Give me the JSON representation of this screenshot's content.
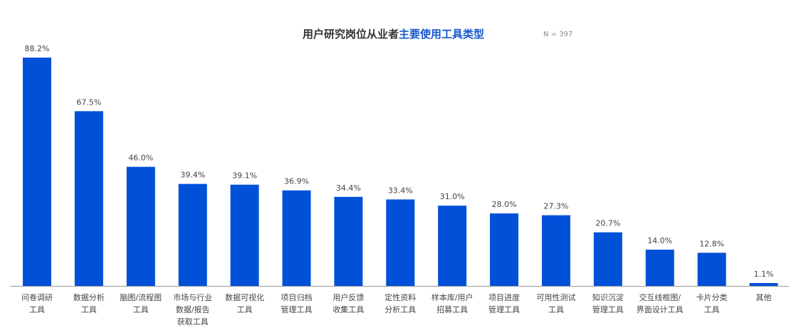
{
  "title": {
    "prefix": "用户研究岗位从业者",
    "highlight": "主要使用工具类型"
  },
  "note": "N = 397",
  "colors": {
    "bar": "#0050d8",
    "highlight": "#1457cc",
    "axis": "#999999"
  },
  "chart_data": {
    "type": "bar",
    "title": "用户研究岗位从业者主要使用工具类型",
    "categories": [
      "问卷调研\n工具",
      "数据分析\n工具",
      "脑图/流程图\n工具",
      "市场与行业\n数据/报告\n获取工具",
      "数据可视化\n工具",
      "项目归档\n管理工具",
      "用户反馈\n收集工具",
      "定性资料\n分析工具",
      "样本库/用户\n招募工具",
      "项目进度\n管理工具",
      "可用性测试\n工具",
      "知识沉淀\n管理工具",
      "交互线框图/\n界面设计工具",
      "卡片分类\n工具",
      "其他"
    ],
    "values": [
      88.2,
      67.5,
      46.0,
      39.4,
      39.1,
      36.9,
      34.4,
      33.4,
      31.0,
      28.0,
      27.3,
      20.7,
      14.0,
      12.8,
      1.1
    ],
    "labels": [
      "88.2%",
      "67.5%",
      "46.0%",
      "39.4%",
      "39.1%",
      "36.9%",
      "34.4%",
      "33.4%",
      "31.0%",
      "28.0%",
      "27.3%",
      "20.7%",
      "14.0%",
      "12.8%",
      "1.1%"
    ],
    "unit": "%",
    "ylim": [
      0,
      100
    ],
    "grid": false,
    "legend": "none"
  }
}
